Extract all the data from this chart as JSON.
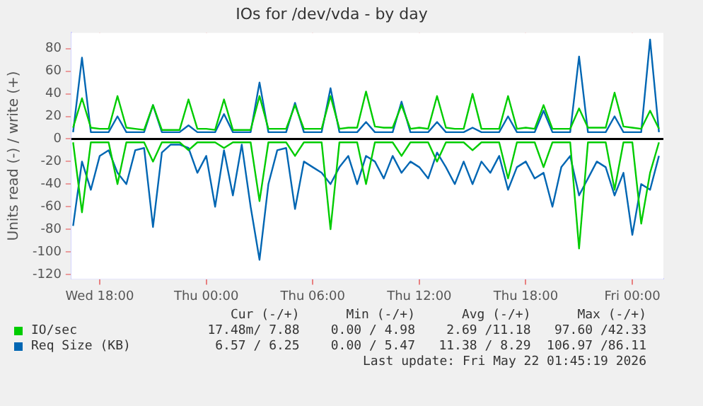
{
  "chart_data": {
    "type": "line",
    "title": "IOs for /dev/vda - by day",
    "ylabel": "Units read (-) / write (+)",
    "x": [
      "2026-05-20T16:30",
      "2026-05-20T17:00",
      "2026-05-20T17:30",
      "2026-05-20T18:00",
      "2026-05-20T18:30",
      "2026-05-20T19:00",
      "2026-05-20T19:30",
      "2026-05-20T20:00",
      "2026-05-20T20:30",
      "2026-05-20T21:00",
      "2026-05-20T21:30",
      "2026-05-20T22:00",
      "2026-05-20T22:30",
      "2026-05-20T23:00",
      "2026-05-20T23:30",
      "2026-05-21T00:00",
      "2026-05-21T00:30",
      "2026-05-21T01:00",
      "2026-05-21T01:30",
      "2026-05-21T02:00",
      "2026-05-21T02:30",
      "2026-05-21T03:00",
      "2026-05-21T03:30",
      "2026-05-21T04:00",
      "2026-05-21T04:30",
      "2026-05-21T05:00",
      "2026-05-21T05:30",
      "2026-05-21T06:00",
      "2026-05-21T06:30",
      "2026-05-21T07:00",
      "2026-05-21T07:30",
      "2026-05-21T08:00",
      "2026-05-21T08:30",
      "2026-05-21T09:00",
      "2026-05-21T09:30",
      "2026-05-21T10:00",
      "2026-05-21T10:30",
      "2026-05-21T11:00",
      "2026-05-21T11:30",
      "2026-05-21T12:00",
      "2026-05-21T12:30",
      "2026-05-21T13:00",
      "2026-05-21T13:30",
      "2026-05-21T14:00",
      "2026-05-21T14:30",
      "2026-05-21T15:00",
      "2026-05-21T15:30",
      "2026-05-21T16:00",
      "2026-05-21T16:30",
      "2026-05-21T17:00",
      "2026-05-21T17:30",
      "2026-05-21T18:00",
      "2026-05-21T18:30",
      "2026-05-21T19:00",
      "2026-05-21T19:30",
      "2026-05-21T20:00",
      "2026-05-21T20:30",
      "2026-05-21T21:00",
      "2026-05-21T21:30",
      "2026-05-21T22:00",
      "2026-05-21T22:30",
      "2026-05-21T23:00",
      "2026-05-21T23:30",
      "2026-05-22T00:00",
      "2026-05-22T00:30",
      "2026-05-22T01:00",
      "2026-05-22T01:30"
    ],
    "series": [
      {
        "name": "IO/sec",
        "color": "#00cc00",
        "values": [
          10,
          36,
          10,
          9,
          9,
          38,
          10,
          9,
          8,
          30,
          8,
          8,
          8,
          35,
          9,
          9,
          8,
          35,
          8,
          8,
          8,
          38,
          9,
          9,
          9,
          30,
          9,
          9,
          9,
          38,
          9,
          10,
          10,
          42,
          11,
          10,
          10,
          30,
          9,
          10,
          9,
          38,
          10,
          9,
          9,
          40,
          9,
          9,
          9,
          38,
          9,
          10,
          9,
          30,
          9,
          9,
          9,
          27,
          10,
          10,
          10,
          41,
          11,
          10,
          9,
          25,
          9
        ]
      },
      {
        "name": "Req Size (KB)",
        "color": "#0066b3",
        "values": [
          6,
          72,
          6,
          6,
          6,
          20,
          6,
          6,
          6,
          30,
          6,
          6,
          6,
          12,
          6,
          6,
          6,
          22,
          6,
          6,
          6,
          50,
          6,
          6,
          6,
          32,
          6,
          6,
          6,
          45,
          6,
          6,
          6,
          15,
          6,
          6,
          6,
          33,
          6,
          6,
          6,
          15,
          6,
          6,
          6,
          10,
          6,
          6,
          6,
          20,
          6,
          6,
          6,
          25,
          6,
          6,
          6,
          73,
          6,
          6,
          6,
          20,
          6,
          6,
          6,
          88,
          6
        ]
      },
      {
        "color": "#00cc00",
        "values": [
          -3,
          -65,
          -3,
          -3,
          -3,
          -40,
          -3,
          -3,
          -3,
          -20,
          -3,
          -3,
          -3,
          -10,
          -3,
          -3,
          -3,
          -8,
          -3,
          -3,
          -3,
          -55,
          -3,
          -3,
          -3,
          -15,
          -3,
          -3,
          -3,
          -80,
          -3,
          -3,
          -3,
          -40,
          -3,
          -3,
          -3,
          -15,
          -3,
          -3,
          -3,
          -20,
          -3,
          -3,
          -3,
          -10,
          -3,
          -3,
          -3,
          -35,
          -3,
          -3,
          -3,
          -25,
          -3,
          -3,
          -3,
          -97,
          -3,
          -3,
          -3,
          -45,
          -3,
          -3,
          -75,
          -30,
          -3
        ]
      },
      {
        "color": "#0066b3",
        "values": [
          -77,
          -20,
          -45,
          -15,
          -10,
          -30,
          -40,
          -10,
          -8,
          -78,
          -12,
          -5,
          -5,
          -8,
          -30,
          -15,
          -60,
          -10,
          -50,
          -5,
          -60,
          -107,
          -40,
          -10,
          -8,
          -62,
          -20,
          -25,
          -30,
          -40,
          -25,
          -15,
          -40,
          -15,
          -20,
          -35,
          -15,
          -30,
          -20,
          -25,
          -35,
          -12,
          -25,
          -40,
          -20,
          -40,
          -20,
          -30,
          -15,
          -45,
          -25,
          -20,
          -35,
          -30,
          -60,
          -25,
          -15,
          -50,
          -35,
          -20,
          -25,
          -50,
          -30,
          -85,
          -40,
          -45,
          -15
        ]
      }
    ],
    "xlim": [
      "2026-05-20T16:24",
      "2026-05-22T01:45"
    ],
    "xticks": [
      {
        "value": "2026-05-20T18:00",
        "label": "Wed 18:00"
      },
      {
        "value": "2026-05-21T00:00",
        "label": "Thu 00:00"
      },
      {
        "value": "2026-05-21T06:00",
        "label": "Thu 06:00"
      },
      {
        "value": "2026-05-21T12:00",
        "label": "Thu 12:00"
      },
      {
        "value": "2026-05-21T18:00",
        "label": "Thu 18:00"
      },
      {
        "value": "2026-05-22T00:00",
        "label": "Fri 00:00"
      }
    ],
    "ylim": [
      -124,
      94
    ],
    "yticks": [
      -120,
      -100,
      -80,
      -60,
      -40,
      -20,
      0,
      20,
      40,
      60,
      80
    ],
    "ref_lines": [
      {
        "axis": "y",
        "value": 0,
        "color": "#000000"
      }
    ],
    "grid": true,
    "legend": "bottom",
    "marker": "none",
    "line_style": "solid",
    "annotations": [
      "Cur (-/+)",
      "Min (-/+)",
      "Avg (-/+)",
      "Max (-/+)",
      "17.48m/ 7.88",
      "0.00 / 4.98",
      "2.69 /11.18",
      "97.60 /42.33",
      "6.57 / 6.25",
      "0.00 / 5.47",
      "11.38 / 8.29",
      "106.97 /86.11",
      "Last update: Fri May 22 01:45:19 2026"
    ]
  }
}
